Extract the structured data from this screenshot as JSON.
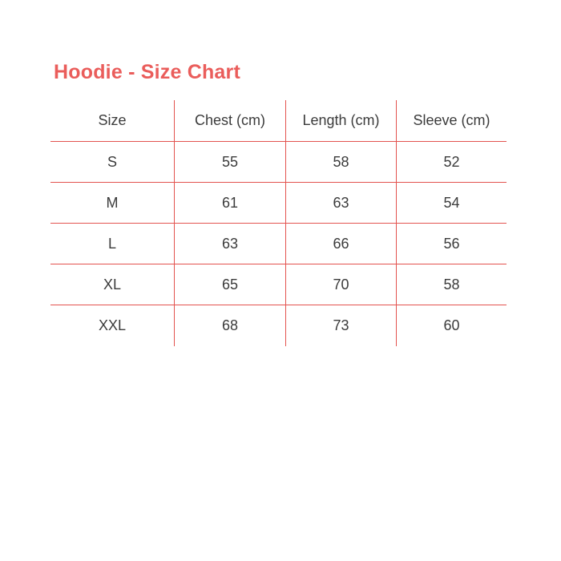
{
  "title": {
    "text": "Hoodie - Size Chart"
  },
  "colors": {
    "accent": "#ea5d5b",
    "line": "#e3534f",
    "text": "#3b3b3b",
    "bg": "#ffffff"
  },
  "table": {
    "columns": [
      "Size",
      "Chest (cm)",
      "Length (cm)",
      "Sleeve (cm)"
    ],
    "rows": [
      [
        "S",
        "55",
        "58",
        "52"
      ],
      [
        "M",
        "61",
        "63",
        "54"
      ],
      [
        "L",
        "63",
        "66",
        "56"
      ],
      [
        "XL",
        "65",
        "70",
        "58"
      ],
      [
        "XXL",
        "68",
        "73",
        "60"
      ]
    ]
  },
  "chart_data": {
    "type": "table",
    "title": "Hoodie - Size Chart",
    "columns": [
      "Size",
      "Chest (cm)",
      "Length (cm)",
      "Sleeve (cm)"
    ],
    "rows": [
      [
        "S",
        55,
        58,
        52
      ],
      [
        "M",
        61,
        63,
        54
      ],
      [
        "L",
        63,
        66,
        56
      ],
      [
        "XL",
        65,
        70,
        58
      ],
      [
        "XXL",
        68,
        73,
        60
      ]
    ],
    "layout": {
      "grid": "inner lines only, no outer border, no line under last row",
      "line_color": "#e3534f",
      "header_position": "top row"
    }
  }
}
